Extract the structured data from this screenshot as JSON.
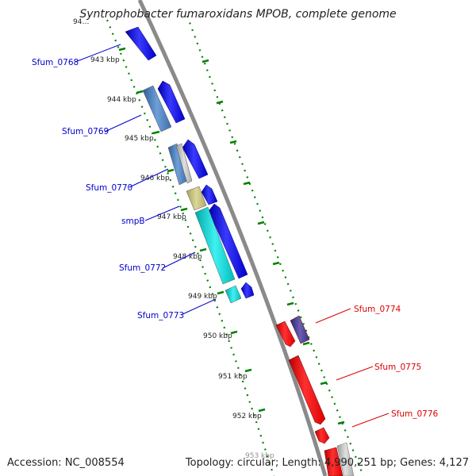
{
  "title": "Syntrophobacter fumaroxidans MPOB, complete genome",
  "footer": {
    "accession": "Accession: NC_008554",
    "topology": "Topology: circular; Length: 4,990,251 bp; Genes: 4,127"
  },
  "colors": {
    "forward_label": "#0000cc",
    "reverse_label": "#dd0000",
    "tick": "#008000",
    "backbone": "#888888",
    "cds_forward": "#0000ee",
    "cds_reverse": "#ee0000",
    "cds_steel": "#4a7fbf",
    "cds_grey": "#bbbbbb",
    "cds_khaki": "#c8c07a",
    "cds_cyan": "#00cccc",
    "cds_indigo": "#4a3f8f"
  },
  "kbp_labels": [
    "94…",
    "943 kbp",
    "944 kbp",
    "945 kbp",
    "946 kbp",
    "947 kbp",
    "948 kbp",
    "949 kbp",
    "950 kbp",
    "951 kbp",
    "952 kbp",
    "953 kbp"
  ],
  "gene_labels": [
    {
      "id": "g768",
      "text": "Sfum_0768",
      "strand": "forward"
    },
    {
      "id": "g769",
      "text": "Sfum_0769",
      "strand": "forward"
    },
    {
      "id": "g770",
      "text": "Sfum_0770",
      "strand": "forward"
    },
    {
      "id": "gsmpB",
      "text": "smpB",
      "strand": "forward"
    },
    {
      "id": "g772",
      "text": "Sfum_0772",
      "strand": "forward"
    },
    {
      "id": "g773",
      "text": "Sfum_0773",
      "strand": "forward"
    },
    {
      "id": "g774",
      "text": "Sfum_0774",
      "strand": "reverse"
    },
    {
      "id": "g775",
      "text": "Sfum_0775",
      "strand": "reverse"
    },
    {
      "id": "g776",
      "text": "Sfum_0776",
      "strand": "reverse"
    }
  ]
}
